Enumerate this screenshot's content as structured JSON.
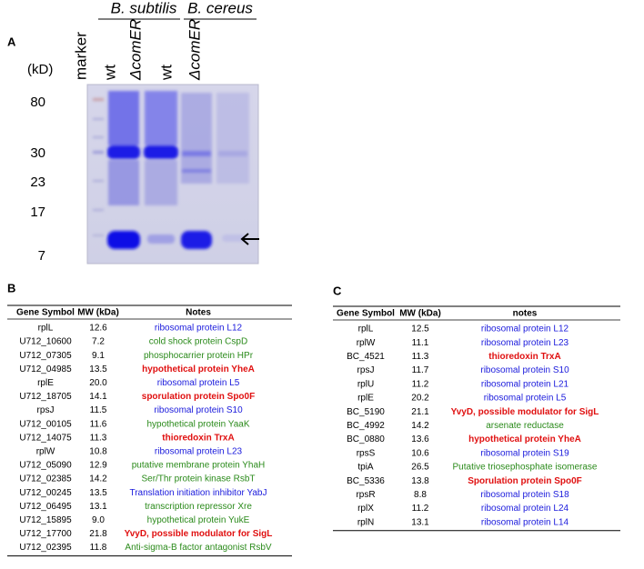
{
  "panel_a": {
    "label": "A",
    "unit": "(kD)",
    "species": [
      "B. subtilis",
      "B. cereus"
    ],
    "lanes": [
      "marker",
      "wt",
      "ΔcomER",
      "wt",
      "ΔcomER"
    ],
    "mw_markers": [
      "80",
      "30",
      "23",
      "17",
      "7"
    ]
  },
  "table_b": {
    "label": "B",
    "columns": [
      "Gene Symbol",
      "MW (kDa)",
      "Notes"
    ],
    "rows": [
      {
        "gene": "rplL",
        "mw": "12.6",
        "note": "ribosomal protein L12",
        "color": "#1a1adc"
      },
      {
        "gene": "U712_10600",
        "mw": "7.2",
        "note": "cold shock protein CspD",
        "color": "#2a8a1a"
      },
      {
        "gene": "U712_07305",
        "mw": "9.1",
        "note": "phosphocarrier protein HPr",
        "color": "#2a8a1a"
      },
      {
        "gene": "U712_04985",
        "mw": "13.5",
        "note": "hypothetical protein YheA",
        "color": "#e01010"
      },
      {
        "gene": "rplE",
        "mw": "20.0",
        "note": "ribosomal protein L5",
        "color": "#1a1adc"
      },
      {
        "gene": "U712_18705",
        "mw": "14.1",
        "note": "sporulation protein Spo0F",
        "color": "#e01010"
      },
      {
        "gene": "rpsJ",
        "mw": "11.5",
        "note": "ribosomal protein S10",
        "color": "#1a1adc"
      },
      {
        "gene": "U712_00105",
        "mw": "11.6",
        "note": "hypothetical protein YaaK",
        "color": "#2a8a1a"
      },
      {
        "gene": "U712_14075",
        "mw": "11.3",
        "note": "thioredoxin TrxA",
        "color": "#e01010"
      },
      {
        "gene": "rplW",
        "mw": "10.8",
        "note": "ribosomal protein L23",
        "color": "#1a1adc"
      },
      {
        "gene": "U712_05090",
        "mw": "12.9",
        "note": "putative membrane protein YhaH",
        "color": "#2a8a1a"
      },
      {
        "gene": "U712_02385",
        "mw": "14.2",
        "note": "Ser/Thr protein kinase RsbT",
        "color": "#2a8a1a"
      },
      {
        "gene": "U712_00245",
        "mw": "13.5",
        "note": "Translation initiation inhibitor YabJ",
        "color": "#1a1adc"
      },
      {
        "gene": "U712_06495",
        "mw": "13.1",
        "note": "transcription repressor Xre",
        "color": "#2a8a1a"
      },
      {
        "gene": "U712_15895",
        "mw": "9.0",
        "note": "hypothetical protein YukE",
        "color": "#2a8a1a"
      },
      {
        "gene": "U712_17700",
        "mw": "21.8",
        "note": "YvyD, possible modulator for SigL",
        "color": "#e01010"
      },
      {
        "gene": "U712_02395",
        "mw": "11.8",
        "note": "Anti-sigma-B factor antagonist RsbV",
        "color": "#2a8a1a"
      }
    ]
  },
  "table_c": {
    "label": "C",
    "columns": [
      "Gene Symbol",
      "MW (kDa)",
      "notes"
    ],
    "rows": [
      {
        "gene": "rplL",
        "mw": "12.5",
        "note": "ribosomal protein L12",
        "color": "#1a1adc"
      },
      {
        "gene": "rplW",
        "mw": "11.1",
        "note": "ribosomal protein L23",
        "color": "#1a1adc"
      },
      {
        "gene": "BC_4521",
        "mw": "11.3",
        "note": "thioredoxin TrxA",
        "color": "#e01010"
      },
      {
        "gene": "rpsJ",
        "mw": "11.7",
        "note": "ribosomal protein S10",
        "color": "#1a1adc"
      },
      {
        "gene": "rplU",
        "mw": "11.2",
        "note": "ribosomal protein L21",
        "color": "#1a1adc"
      },
      {
        "gene": "rplE",
        "mw": "20.2",
        "note": "ribosomal protein L5",
        "color": "#1a1adc"
      },
      {
        "gene": "BC_5190",
        "mw": "21.1",
        "note": "YvyD, possible modulator for SigL",
        "color": "#e01010"
      },
      {
        "gene": "BC_4992",
        "mw": "14.2",
        "note": "arsenate reductase",
        "color": "#2a8a1a"
      },
      {
        "gene": "BC_0880",
        "mw": "13.6",
        "note": "hypothetical protein YheA",
        "color": "#e01010"
      },
      {
        "gene": "rpsS",
        "mw": "10.6",
        "note": "ribosomal protein S19",
        "color": "#1a1adc"
      },
      {
        "gene": "tpiA",
        "mw": "26.5",
        "note": "Putative triosephosphate isomerase",
        "color": "#2a8a1a"
      },
      {
        "gene": "BC_5336",
        "mw": "13.8",
        "note": "Sporulation protein Spo0F",
        "color": "#e01010"
      },
      {
        "gene": "rpsR",
        "mw": "8.8",
        "note": "ribosomal protein S18",
        "color": "#1a1adc"
      },
      {
        "gene": "rplX",
        "mw": "11.2",
        "note": "ribosomal protein L24",
        "color": "#1a1adc"
      },
      {
        "gene": "rplN",
        "mw": "13.1",
        "note": "ribosomal protein L14",
        "color": "#1a1adc"
      }
    ]
  }
}
